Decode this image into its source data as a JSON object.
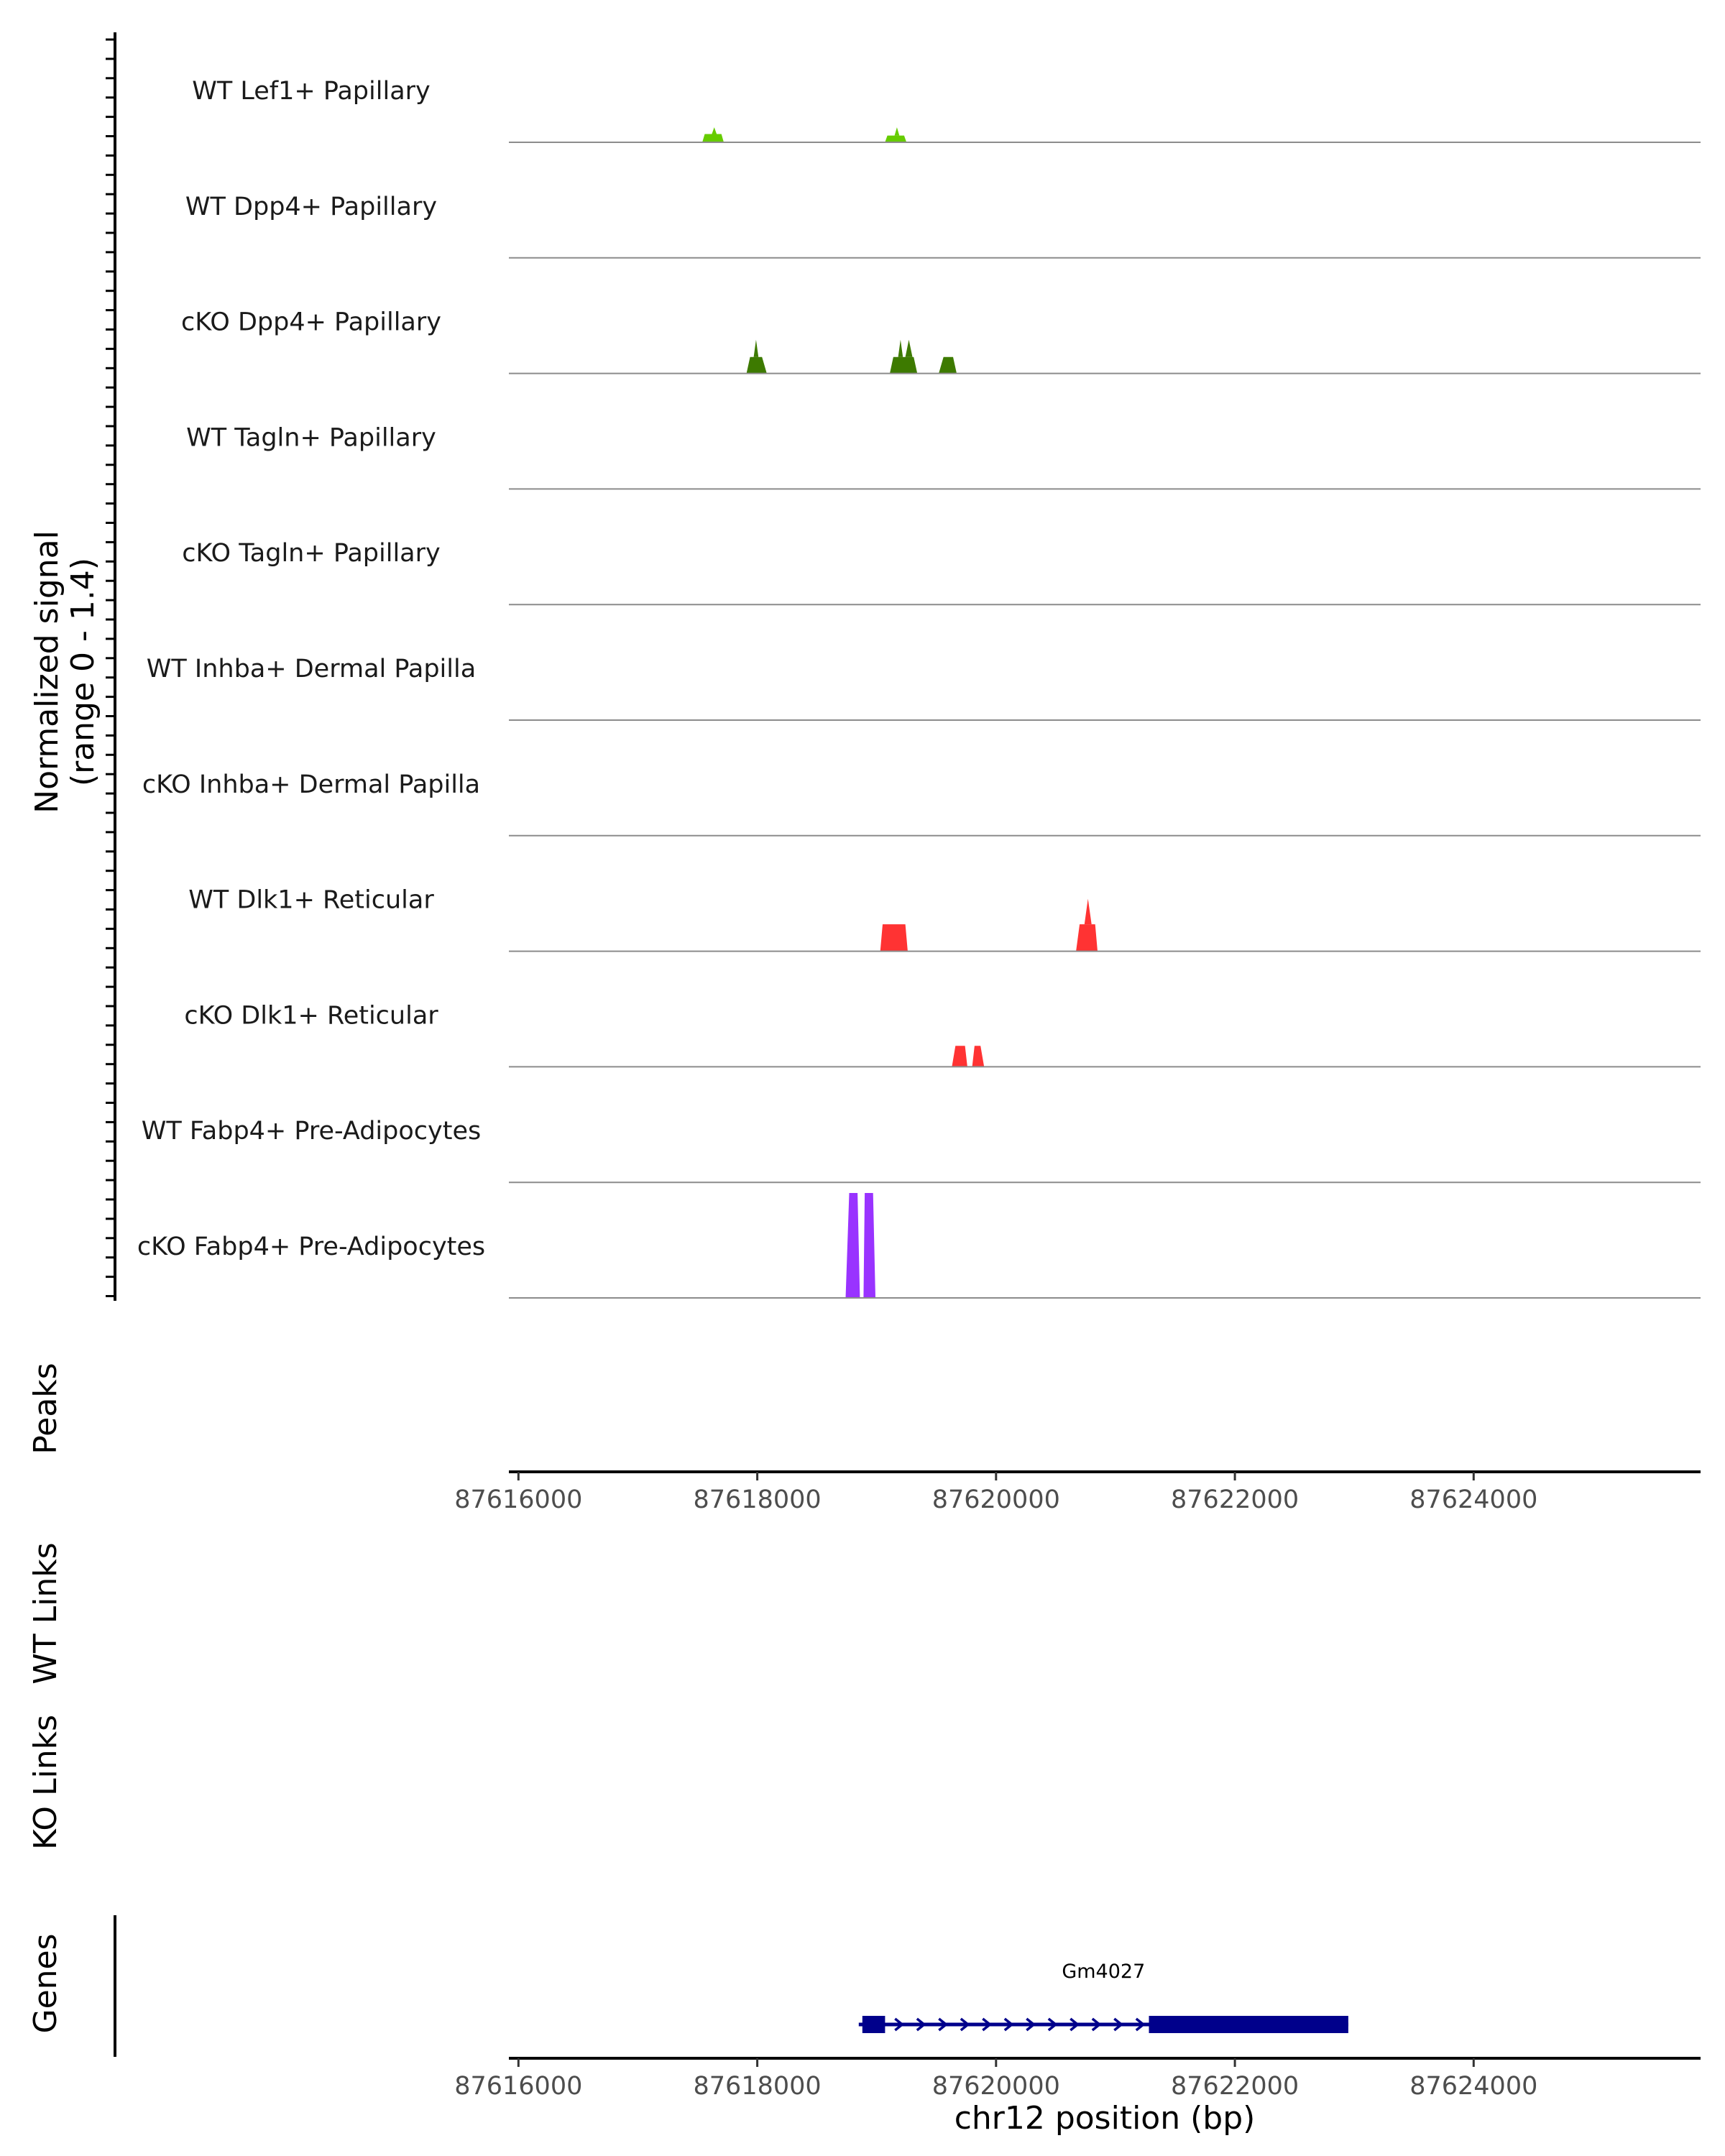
{
  "chart_data": {
    "type": "area",
    "chromosome": "chr12",
    "xlabel": "chr12 position (bp)",
    "xlim": [
      87615920,
      87625900
    ],
    "x_ticks": [
      87616000,
      87618000,
      87620000,
      87622000,
      87624000
    ],
    "x_tick_labels": [
      "87616000",
      "87618000",
      "87620000",
      "87622000",
      "87624000"
    ],
    "signal_title_line1": "Normalized signal",
    "signal_title_line2": "(range 0 - 1.4)",
    "ylim": [
      0,
      1.4
    ],
    "tracks": [
      {
        "name": "WT Lef1+ Papillary",
        "color": "#66cc00",
        "peaks": [
          {
            "x": [
              87617540,
              87617560,
              87617700,
              87617720
            ],
            "y": [
              0,
              0.11,
              0.11,
              0
            ]
          },
          {
            "x": [
              87617620,
              87617640,
              87617660
            ],
            "y": [
              0.11,
              0.2,
              0.11
            ]
          },
          {
            "x": [
              87619070,
              87619090,
              87619230,
              87619250
            ],
            "y": [
              0,
              0.09,
              0.09,
              0
            ]
          },
          {
            "x": [
              87619150,
              87619170,
              87619190
            ],
            "y": [
              0.09,
              0.2,
              0.09
            ]
          }
        ]
      },
      {
        "name": "WT Dpp4+ Papillary",
        "color": "#3d7a00",
        "peaks": []
      },
      {
        "name": "cKO Dpp4+ Papillary",
        "color": "#3d7a00",
        "peaks": [
          {
            "x": [
              87617910,
              87617940,
              87618040,
              87618080
            ],
            "y": [
              0,
              0.22,
              0.22,
              0
            ]
          },
          {
            "x": [
              87617970,
              87617990,
              87618010
            ],
            "y": [
              0.22,
              0.45,
              0.22
            ]
          },
          {
            "x": [
              87619110,
              87619140,
              87619310,
              87619340
            ],
            "y": [
              0,
              0.22,
              0.22,
              0
            ]
          },
          {
            "x": [
              87619180,
              87619200,
              87619220
            ],
            "y": [
              0.22,
              0.45,
              0.22
            ]
          },
          {
            "x": [
              87619240,
              87619270,
              87619300
            ],
            "y": [
              0.22,
              0.45,
              0.22
            ]
          },
          {
            "x": [
              87619520,
              87619560,
              87619640,
              87619670
            ],
            "y": [
              0,
              0.22,
              0.22,
              0
            ]
          }
        ]
      },
      {
        "name": "WT Tagln+ Papillary",
        "color": "#3d7a00",
        "peaks": []
      },
      {
        "name": "cKO Tagln+ Papillary",
        "color": "#3d7a00",
        "peaks": []
      },
      {
        "name": "WT Inhba+ Dermal Papilla",
        "color": "#3d7a00",
        "peaks": []
      },
      {
        "name": "cKO Inhba+ Dermal Papilla",
        "color": "#3d7a00",
        "peaks": []
      },
      {
        "name": "WT Dlk1+ Reticular",
        "color": "#ff3333",
        "peaks": [
          {
            "x": [
              87619030,
              87619050,
              87619240,
              87619260
            ],
            "y": [
              0,
              0.36,
              0.36,
              0
            ]
          },
          {
            "x": [
              87620670,
              87620700,
              87620830,
              87620850
            ],
            "y": [
              0,
              0.36,
              0.36,
              0
            ]
          },
          {
            "x": [
              87620740,
              87620770,
              87620800
            ],
            "y": [
              0.36,
              0.7,
              0.36
            ]
          }
        ]
      },
      {
        "name": "cKO Dlk1+ Reticular",
        "color": "#ff3333",
        "peaks": [
          {
            "x": [
              87619630,
              87619660,
              87619740,
              87619760
            ],
            "y": [
              0,
              0.28,
              0.28,
              0
            ]
          },
          {
            "x": [
              87619800,
              87619820,
              87619870,
              87619900
            ],
            "y": [
              0,
              0.28,
              0.28,
              0
            ]
          }
        ]
      },
      {
        "name": "WT Fabp4+ Pre-Adipocytes",
        "color": "#9933ff",
        "peaks": []
      },
      {
        "name": "cKO Fabp4+ Pre-Adipocytes",
        "color": "#9933ff",
        "peaks": [
          {
            "x": [
              87618740,
              87618770,
              87618840,
              87618860
            ],
            "y": [
              0,
              1.4,
              1.4,
              0
            ]
          },
          {
            "x": [
              87618890,
              87618900,
              87618970,
              87618990
            ],
            "y": [
              0,
              1.4,
              1.4,
              0
            ]
          }
        ]
      }
    ],
    "peaks_label": "Peaks",
    "wt_links_label": "WT Links",
    "ko_links_label": "KO Links",
    "genes_label": "Genes",
    "gene": {
      "name": "Gm4027",
      "strand": "+",
      "start": 87618850,
      "end": 87622950,
      "exons": [
        [
          87618880,
          87619070
        ],
        [
          87621280,
          87622950
        ]
      ],
      "color": "#00008b"
    }
  }
}
